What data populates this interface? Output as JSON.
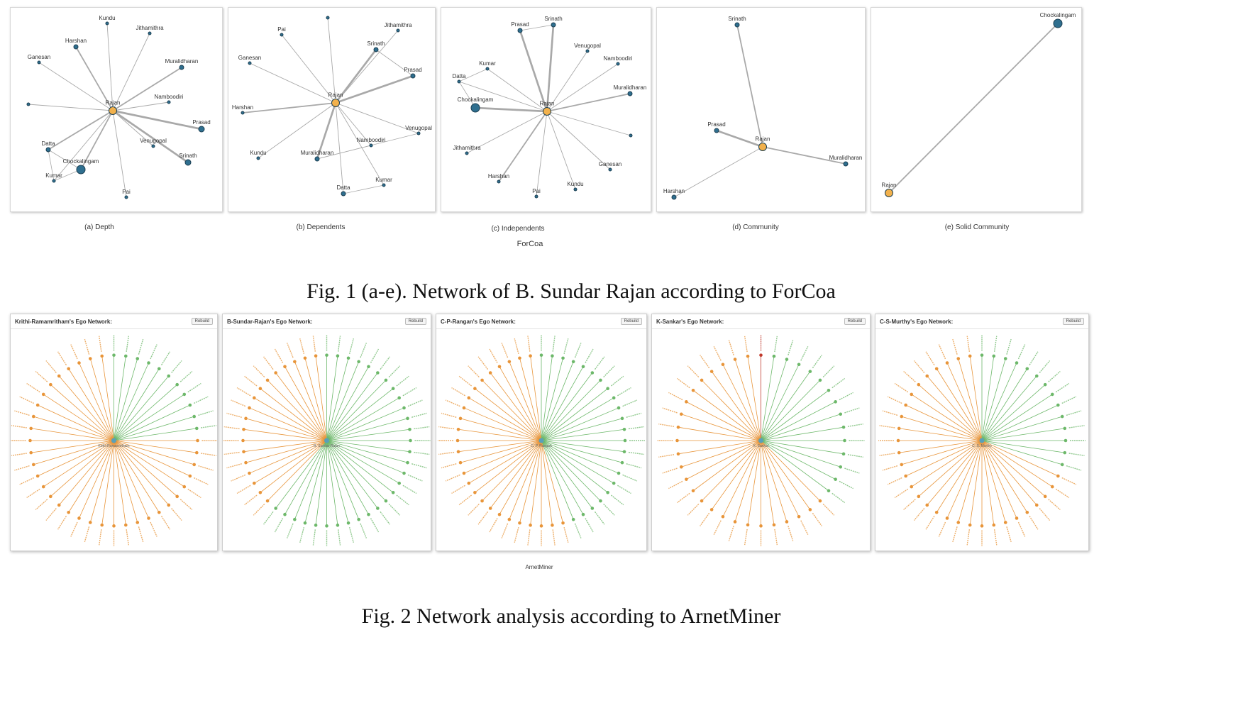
{
  "fig1": {
    "caption": "Fig. 1 (a-e).  Network of B. Sundar Rajan according to ForCoa",
    "source_label": "ForCoa",
    "panels": [
      {
        "sublabel": "(a) Depth",
        "center": {
          "label": "Rajan"
        },
        "nodes": [
          {
            "label": "Kundu"
          },
          {
            "label": "Jithamithra"
          },
          {
            "label": "Harshan"
          },
          {
            "label": "Ganesan"
          },
          {
            "label": "Muralidharan"
          },
          {
            "label": "Namboodiri"
          },
          {
            "label": ""
          },
          {
            "label": "Prasad"
          },
          {
            "label": "Venugopal"
          },
          {
            "label": "Srinath"
          },
          {
            "label": "Datta"
          },
          {
            "label": "Chockalingam"
          },
          {
            "label": "Kumar"
          },
          {
            "label": "Pai"
          }
        ]
      },
      {
        "sublabel": "(b) Dependents",
        "center": {
          "label": "Rajan"
        },
        "nodes": [
          {
            "label": ""
          },
          {
            "label": "Pai"
          },
          {
            "label": "Jithamithra"
          },
          {
            "label": "Srinath"
          },
          {
            "label": "Ganesan"
          },
          {
            "label": "Prasad"
          },
          {
            "label": "Harshan"
          },
          {
            "label": "Venugopal"
          },
          {
            "label": "Namboodiri"
          },
          {
            "label": "Kundu"
          },
          {
            "label": "Muralidharan"
          },
          {
            "label": "Kumar"
          },
          {
            "label": "Datta"
          }
        ]
      },
      {
        "sublabel": "(c) Independents",
        "center": {
          "label": "Rajan"
        },
        "nodes": [
          {
            "label": "Srinath"
          },
          {
            "label": "Prasad"
          },
          {
            "label": "Venugopal"
          },
          {
            "label": "Kumar"
          },
          {
            "label": "Namboodiri"
          },
          {
            "label": "Datta"
          },
          {
            "label": "Muralidharan"
          },
          {
            "label": "Chockalingam"
          },
          {
            "label": ""
          },
          {
            "label": "Jithamithra"
          },
          {
            "label": "Ganesan"
          },
          {
            "label": "Harshan"
          },
          {
            "label": "Kundu"
          },
          {
            "label": "Pai"
          }
        ]
      },
      {
        "sublabel": "(d) Community",
        "center": {
          "label": "Rajan"
        },
        "nodes": [
          {
            "label": "Srinath"
          },
          {
            "label": "Prasad"
          },
          {
            "label": "Muralidharan"
          },
          {
            "label": "Harshan"
          }
        ]
      },
      {
        "sublabel": "(e) Solid Community",
        "center": {
          "label": "Rajan"
        },
        "nodes": [
          {
            "label": "Chockalingam"
          }
        ]
      }
    ]
  },
  "fig2": {
    "caption": "Fig. 2  Network analysis according to ArnetMiner",
    "source_label": "ArnetMiner",
    "button_label": "Rebuild",
    "panels": [
      {
        "title": "Krithi-Ramamritham's Ego Network:",
        "center_label": "Krithi Ramamritham",
        "spokes": 44,
        "green_count": 11,
        "red_count": 0
      },
      {
        "title": "B-Sundar-Rajan's Ego Network:",
        "center_label": "B. Sundar Rajan",
        "spokes": 48,
        "green_count": 30,
        "red_count": 0
      },
      {
        "title": "C-P-Rangan's Ego Network:",
        "center_label": "C. P. Rangan",
        "spokes": 48,
        "green_count": 22,
        "red_count": 0
      },
      {
        "title": "K-Sankar's Ego Network:",
        "center_label": "K. Sankar",
        "spokes": 40,
        "green_count": 14,
        "red_count": 1
      },
      {
        "title": "C-S-Murthy's Ego Network:",
        "center_label": "C. S. Murthy",
        "spokes": 44,
        "green_count": 14,
        "red_count": 0
      }
    ]
  },
  "colors": {
    "center_node": "#f2b14c",
    "node": "#2f6f8f",
    "edge": "#a9a9a9",
    "ego_orange": "#e8953a",
    "ego_green": "#6db86a",
    "ego_red": "#c0392b"
  }
}
